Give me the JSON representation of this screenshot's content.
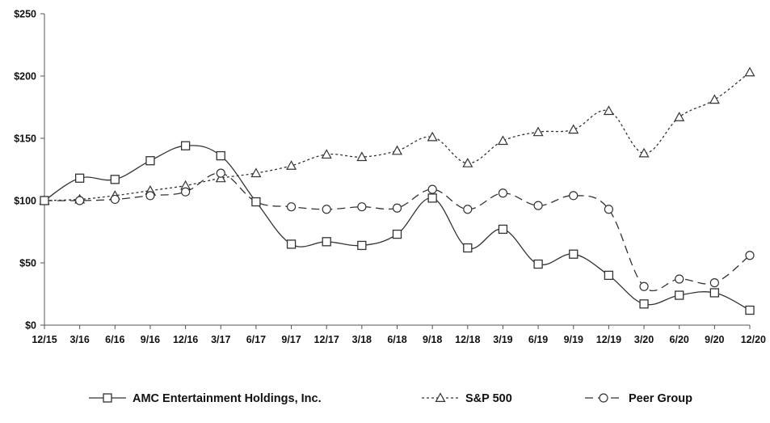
{
  "chart_data": {
    "type": "line",
    "title": "",
    "xlabel": "",
    "ylabel": "",
    "categories": [
      "12/15",
      "3/16",
      "6/16",
      "9/16",
      "12/16",
      "3/17",
      "6/17",
      "9/17",
      "12/17",
      "3/18",
      "6/18",
      "9/18",
      "12/18",
      "3/19",
      "6/19",
      "9/19",
      "12/19",
      "3/20",
      "6/20",
      "9/20",
      "12/20"
    ],
    "ylim": [
      0,
      250
    ],
    "yticks": [
      0,
      50,
      100,
      150,
      200,
      250
    ],
    "ytick_labels": [
      "$0",
      "$50",
      "$100",
      "$150",
      "$200",
      "$250"
    ],
    "grid": false,
    "legend_position": "bottom",
    "series": [
      {
        "name": "AMC Entertainment Holdings, Inc.",
        "marker": "square",
        "dash": "solid",
        "color": "#333333",
        "values": [
          100,
          118,
          117,
          132,
          144,
          136,
          99,
          65,
          67,
          64,
          73,
          102,
          62,
          77,
          49,
          57,
          40,
          17,
          24,
          26,
          12
        ]
      },
      {
        "name": "S&P 500",
        "marker": "triangle",
        "dash": "dotted",
        "color": "#333333",
        "values": [
          100,
          101,
          104,
          108,
          112,
          118,
          122,
          128,
          137,
          135,
          140,
          151,
          130,
          148,
          155,
          157,
          172,
          138,
          167,
          181,
          203
        ]
      },
      {
        "name": "Peer Group",
        "marker": "circle",
        "dash": "dashed",
        "color": "#333333",
        "values": [
          100,
          100,
          101,
          104,
          107,
          122,
          99,
          95,
          93,
          95,
          94,
          109,
          93,
          106,
          96,
          104,
          93,
          31,
          37,
          34,
          56
        ]
      }
    ]
  }
}
